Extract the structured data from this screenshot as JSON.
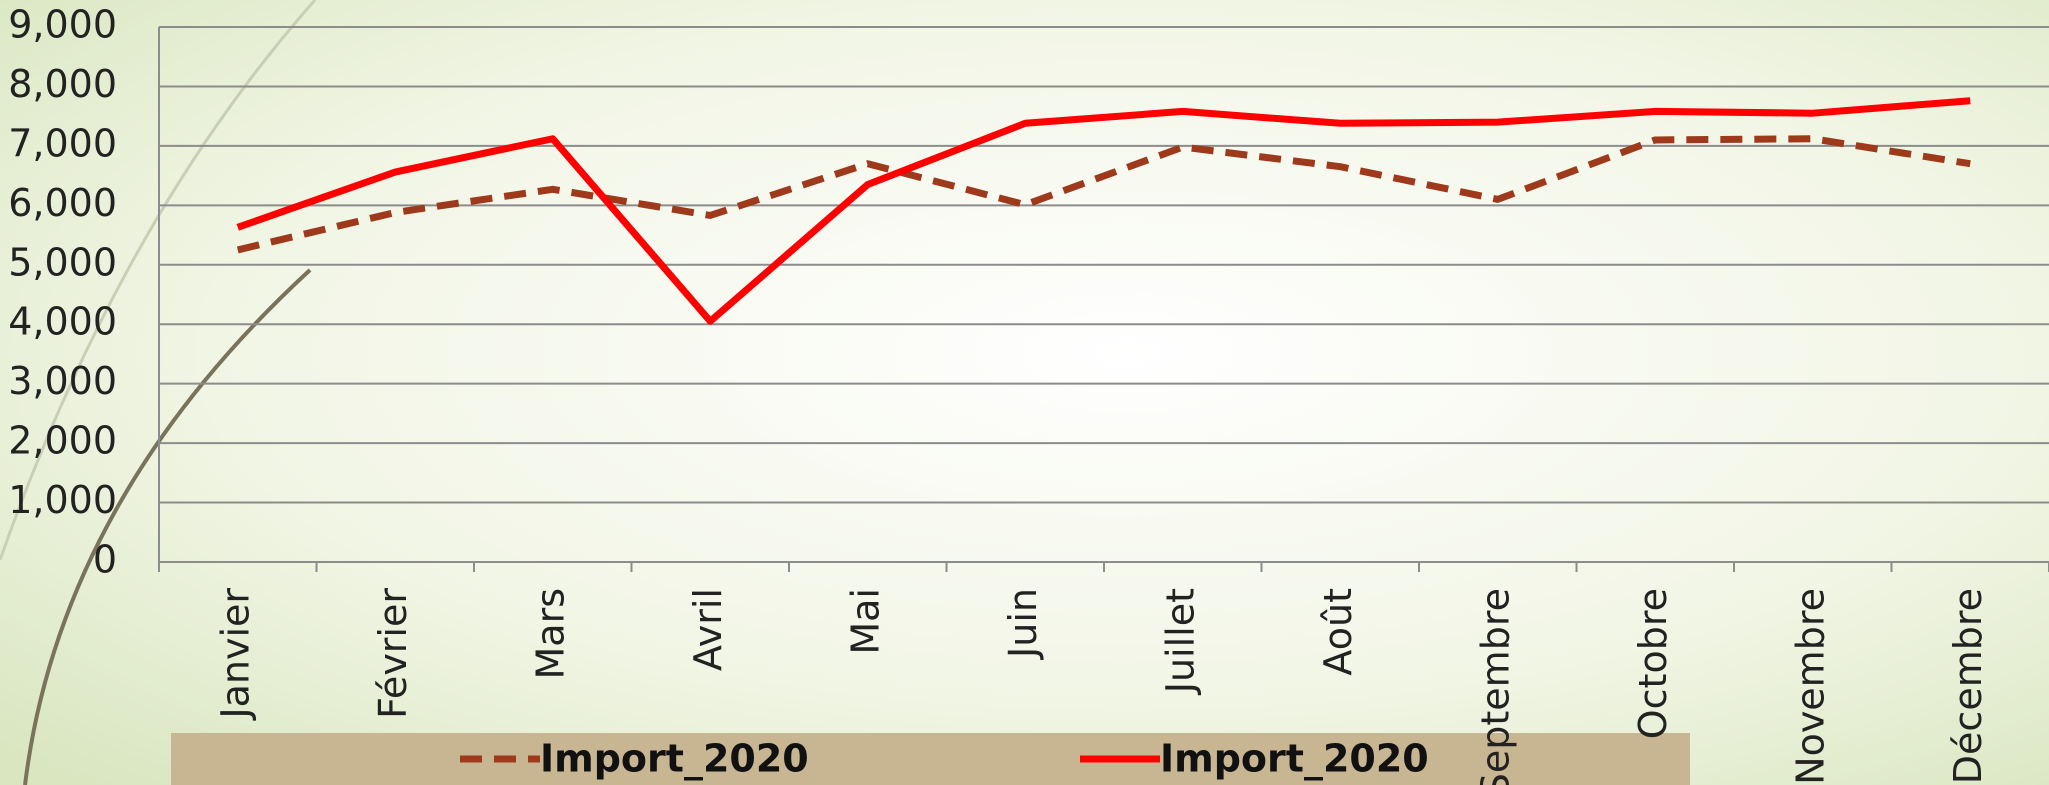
{
  "chart_data": {
    "type": "line",
    "categories": [
      "Janvier",
      "Février",
      "Mars",
      "Avril",
      "Mai",
      "Juin",
      "Juillet",
      "Août",
      "Septembre",
      "Octobre",
      "Novembre",
      "Décembre"
    ],
    "series": [
      {
        "name": "Import_2020",
        "color": "#9e3a1b",
        "dash": true,
        "values": [
          5250,
          5880,
          6270,
          5830,
          6700,
          6010,
          6980,
          6650,
          6100,
          7100,
          7120,
          6700
        ]
      },
      {
        "name": "Import_2020",
        "color": "#ff0000",
        "dash": false,
        "values": [
          5630,
          6560,
          7120,
          4050,
          6350,
          7380,
          7580,
          7380,
          7400,
          7580,
          7550,
          7760
        ]
      }
    ],
    "ylim": [
      0,
      9000
    ],
    "yticks": [
      0,
      {
        "value": 1000,
        "label": "1,000"
      },
      {
        "value": 2000,
        "label": "2,000"
      },
      {
        "value": 3000,
        "label": "3,000"
      },
      {
        "value": 4000,
        "label": "4,000"
      },
      {
        "value": 5000,
        "label": "5,000"
      },
      {
        "value": 6000,
        "label": "6,000"
      },
      {
        "value": 7000,
        "label": "7,000"
      },
      {
        "value": 8000,
        "label": "8,000"
      },
      {
        "value": 9000,
        "label": "9,000"
      }
    ],
    "grid": true,
    "legend": "bottom"
  }
}
